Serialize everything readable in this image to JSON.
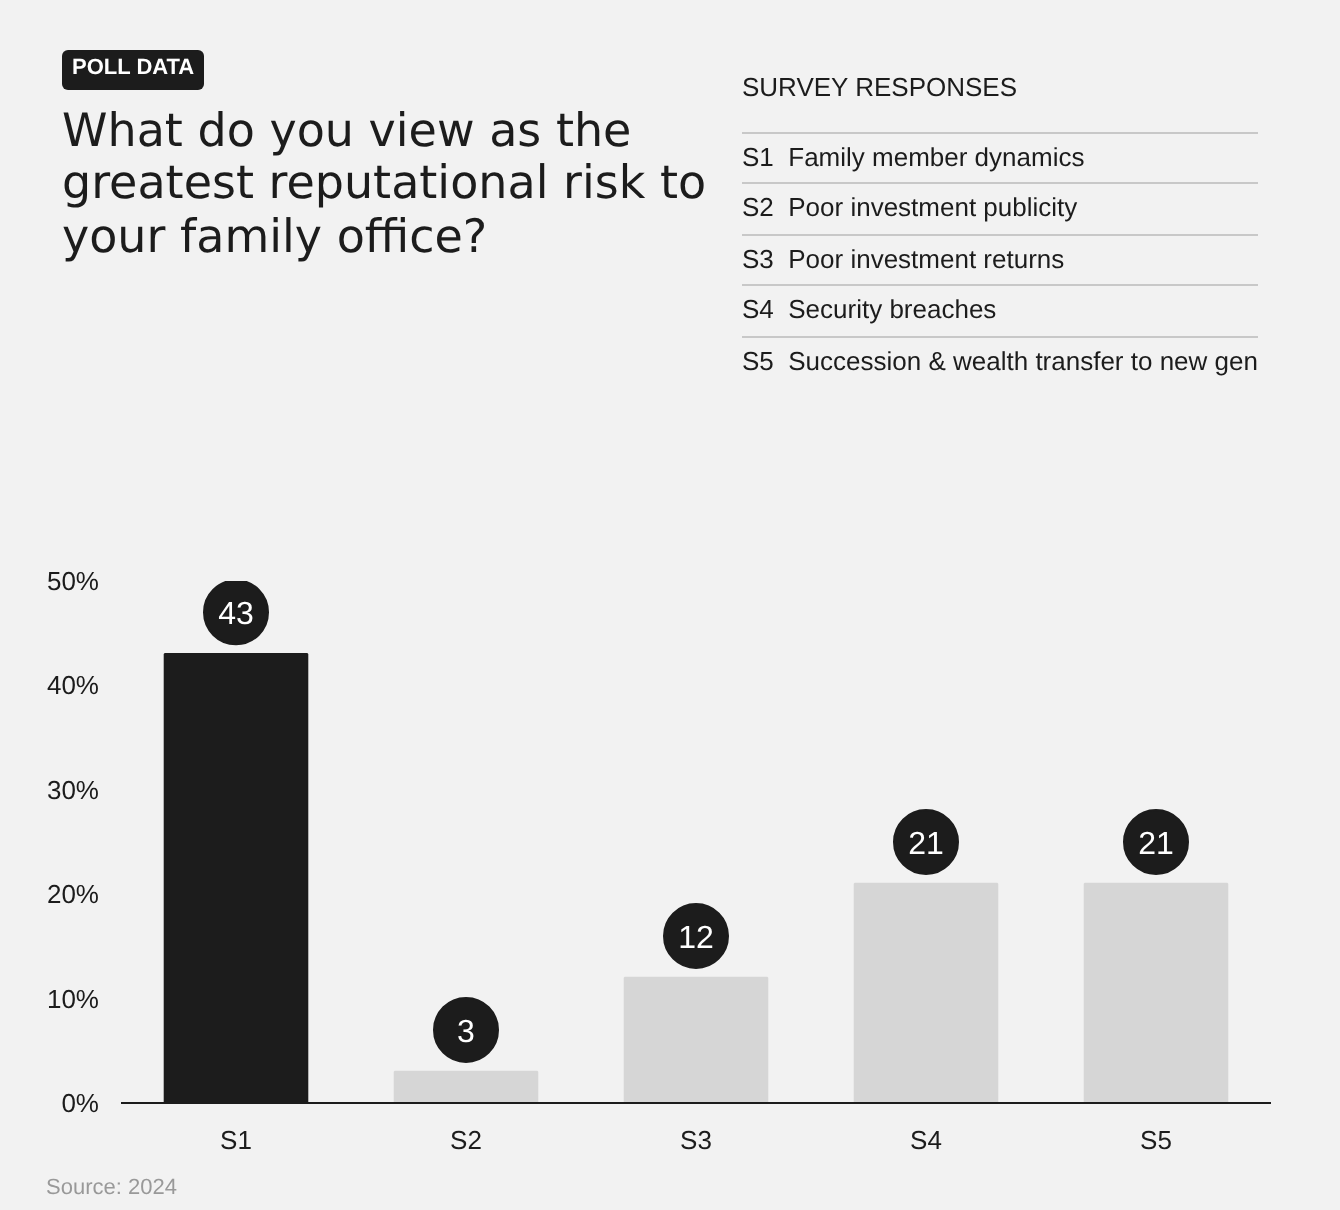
{
  "chart_data": {
    "type": "bar",
    "title": "What do you view as the greatest reputational risk to your family office?",
    "subtitle": "POLL DATA",
    "legend_title": "SURVEY RESPONSES",
    "annotations": [
      "S1  Family member dynamics",
      "S2  Poor investment publicity",
      "S3  Poor investment returns",
      "S4  Security breaches",
      "S5  Succession & wealth transfer to new gen",
      "Source: 2024"
    ],
    "categories": [
      "S1",
      "S2",
      "S3",
      "S4",
      "S5"
    ],
    "values": [
      43,
      3,
      12,
      21,
      21
    ],
    "colors": [
      "#1c1c1c",
      "#d6d6d6",
      "#d6d6d6",
      "#d6d6d6",
      "#d6d6d6"
    ],
    "ylim": [
      0,
      50
    ],
    "yticks": [
      {
        "value": 0,
        "label": "0%"
      },
      {
        "value": 10,
        "label": "10%"
      },
      {
        "value": 20,
        "label": "20%"
      },
      {
        "value": 30,
        "label": "30%"
      },
      {
        "value": 40,
        "label": "40%"
      },
      {
        "value": 50,
        "label": "50%"
      }
    ],
    "data_labels": true,
    "grid": false
  }
}
